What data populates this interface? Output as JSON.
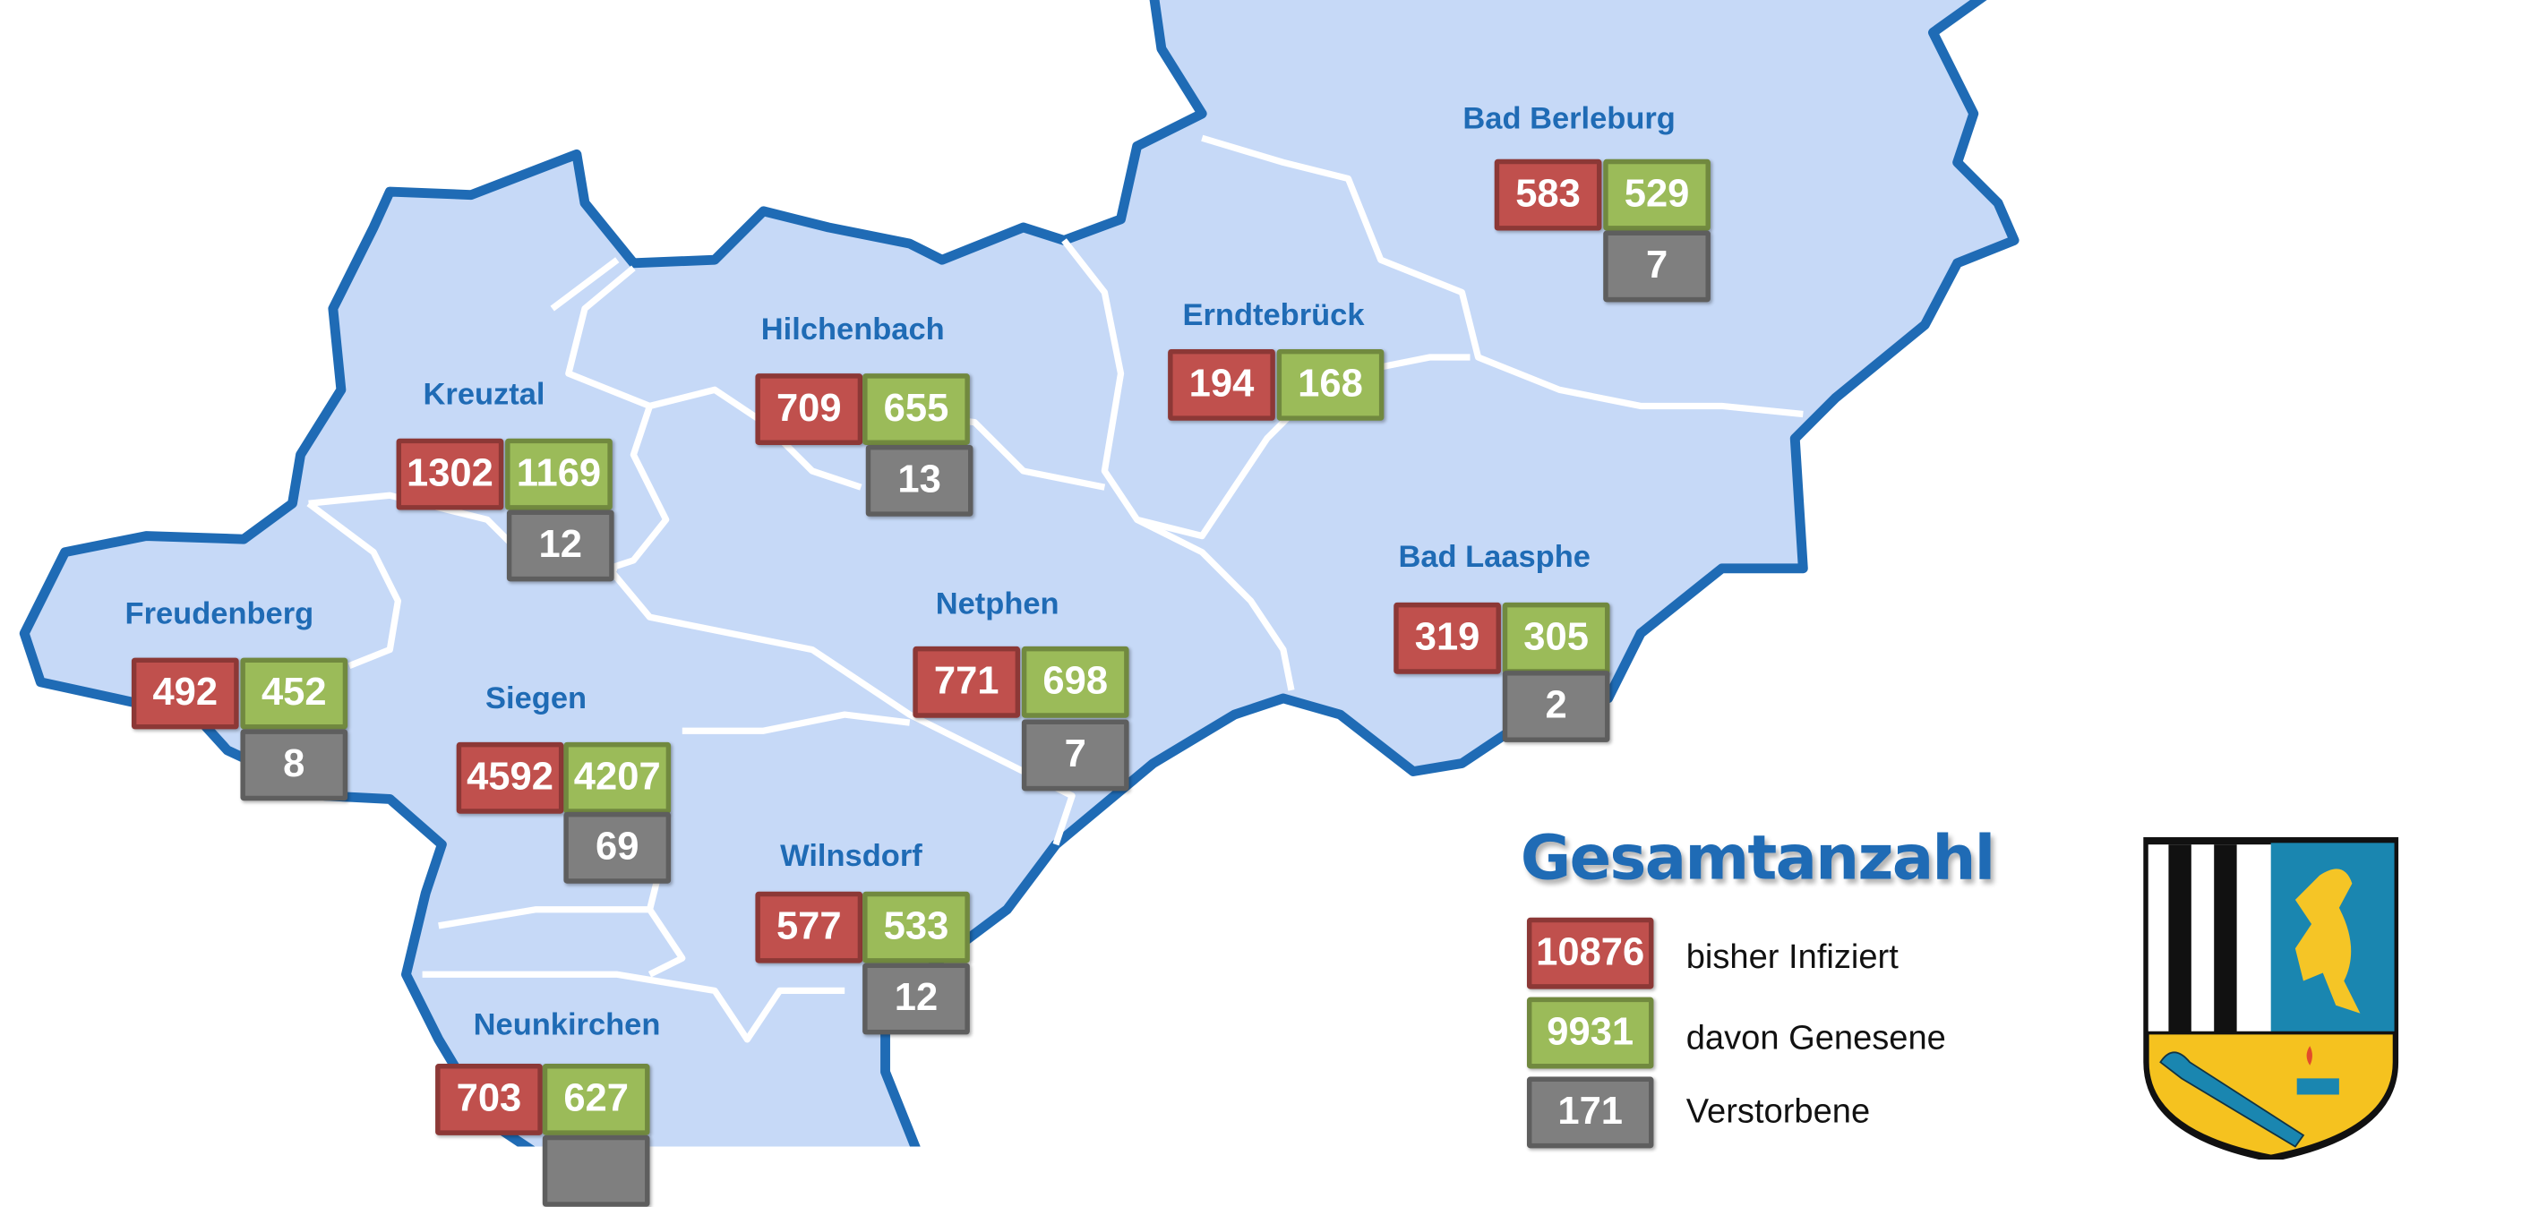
{
  "colors": {
    "infected": "#c0504d",
    "recovered": "#9bbb59",
    "deceased": "#7f7f7f",
    "region_fill": "#c6d9f7",
    "outline": "#1f6bb5"
  },
  "regions": [
    {
      "name": "Bad Berleburg",
      "infected": "583",
      "recovered": "529",
      "deceased": "7"
    },
    {
      "name": "Erndtebrück",
      "infected": "194",
      "recovered": "168"
    },
    {
      "name": "Hilchenbach",
      "infected": "709",
      "recovered": "655",
      "deceased": "13"
    },
    {
      "name": "Kreuztal",
      "infected": "1302",
      "recovered": "1169",
      "deceased": "12"
    },
    {
      "name": "Freudenberg",
      "infected": "492",
      "recovered": "452",
      "deceased": "8"
    },
    {
      "name": "Siegen",
      "infected": "4592",
      "recovered": "4207",
      "deceased": "69"
    },
    {
      "name": "Netphen",
      "infected": "771",
      "recovered": "698",
      "deceased": "7"
    },
    {
      "name": "Bad Laasphe",
      "infected": "319",
      "recovered": "305",
      "deceased": "2"
    },
    {
      "name": "Wilnsdorf",
      "infected": "577",
      "recovered": "533",
      "deceased": "12"
    },
    {
      "name": "Neunkirchen",
      "infected": "703",
      "recovered": "627"
    }
  ],
  "legend": {
    "title": "Gesamtanzahl",
    "items": [
      {
        "value": "10876",
        "label": "bisher Infiziert"
      },
      {
        "value": "9931",
        "label": "davon Genesene"
      },
      {
        "value": "171",
        "label": "Verstorbene"
      }
    ]
  },
  "coat_of_arms": "siegen-wittgenstein-coat-of-arms"
}
